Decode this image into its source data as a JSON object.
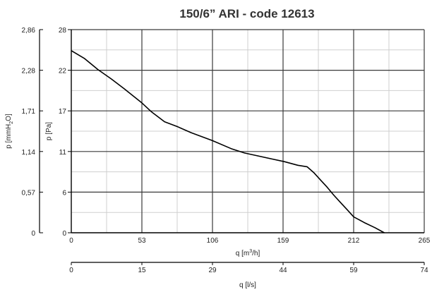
{
  "chart_data": {
    "type": "line",
    "title": "150/6” ARI - code 12613",
    "grid": true,
    "x_axes": [
      {
        "label_main": "q [m",
        "label_sup": "3",
        "label_end": "/h]",
        "ticks": [
          "0",
          "53",
          "106",
          "159",
          "212",
          "265"
        ],
        "tick_values": [
          0,
          53,
          106,
          159,
          212,
          265
        ],
        "xlim": [
          0,
          265
        ]
      },
      {
        "label_main": "q [l/s]",
        "ticks": [
          "0",
          "15",
          "29",
          "44",
          "59",
          "74"
        ],
        "xlim": [
          0,
          74
        ]
      }
    ],
    "y_axes": [
      {
        "label": "p [Pa]",
        "ticks": [
          "0",
          "6",
          "11",
          "17",
          "22",
          "28"
        ],
        "tick_values": [
          0,
          5.6,
          11.2,
          16.8,
          22.4,
          28
        ],
        "ylim": [
          0,
          28
        ]
      },
      {
        "label_main": "p [mmH",
        "label_sub": "2",
        "label_end": "O]",
        "ticks": [
          "0",
          "0,57",
          "1,14",
          "1,71",
          "2,28",
          "2,86"
        ],
        "ylim": [
          0,
          2.86
        ]
      }
    ],
    "series": [
      {
        "color": "#000000",
        "x": [
          0,
          10,
          20,
          30,
          40,
          53,
          60,
          70,
          80,
          90,
          106,
          120,
          130,
          140,
          150,
          160,
          170,
          177,
          182,
          187,
          192,
          197,
          202,
          207,
          212,
          220,
          228,
          235
        ],
        "y": [
          25.1,
          24.0,
          22.5,
          21.2,
          19.8,
          17.9,
          16.7,
          15.3,
          14.6,
          13.8,
          12.7,
          11.6,
          11.0,
          10.6,
          10.2,
          9.8,
          9.3,
          9.1,
          8.3,
          7.3,
          6.3,
          5.2,
          4.2,
          3.2,
          2.2,
          1.4,
          0.7,
          0.0
        ]
      }
    ]
  }
}
